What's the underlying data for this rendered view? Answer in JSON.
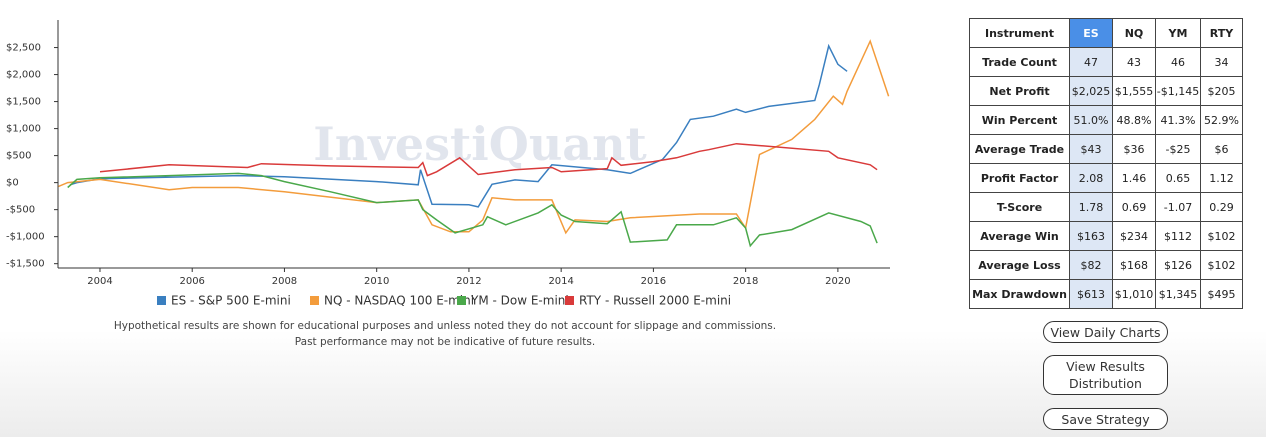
{
  "chart_data": {
    "type": "line",
    "watermark": "InvestiQuant",
    "xlim": [
      2003.09,
      2021.13
    ],
    "xticks": [
      2004,
      2006,
      2008,
      2010,
      2012,
      2014,
      2016,
      2018,
      2020
    ],
    "ylim": [
      -1580,
      3010
    ],
    "yticks": [
      {
        "value": -1500,
        "label": "-$1,500"
      },
      {
        "value": -1000,
        "label": "-$1,000"
      },
      {
        "value": -500,
        "label": "-$500"
      },
      {
        "value": 0,
        "label": "$0"
      },
      {
        "value": 500,
        "label": "$500"
      },
      {
        "value": 1000,
        "label": "$1,000"
      },
      {
        "value": 1500,
        "label": "$1,500"
      },
      {
        "value": 2000,
        "label": "$2,000"
      },
      {
        "value": 2500,
        "label": "$2,500"
      }
    ],
    "series": [
      {
        "name": "ES - S&P 500 E-mini",
        "color": "#3a7fc0",
        "x": [
          2003.35,
          2003.5,
          2004,
          2007,
          2008,
          2010,
          2010.9,
          2010.95,
          2011.2,
          2012,
          2012.2,
          2012.5,
          2013,
          2013.5,
          2013.8,
          2015,
          2015.5,
          2016.2,
          2016.5,
          2016.8,
          2017.3,
          2017.8,
          2018,
          2018.5,
          2019.5,
          2019.6,
          2019.8,
          2020,
          2020.2
        ],
        "values": [
          -40,
          0,
          70,
          130,
          110,
          20,
          -40,
          240,
          -400,
          -410,
          -450,
          -30,
          50,
          20,
          330,
          240,
          170,
          430,
          740,
          1170,
          1230,
          1360,
          1300,
          1410,
          1520,
          1820,
          2530,
          2190,
          2060
        ]
      },
      {
        "name": "NQ - NASDAQ 100 E-mini",
        "color": "#f39c3c",
        "x": [
          2003.1,
          2003.3,
          2004,
          2005.5,
          2006,
          2007,
          2008,
          2010,
          2010.9,
          2011.2,
          2011.6,
          2012,
          2012.3,
          2012.5,
          2013,
          2013.8,
          2014.1,
          2014.3,
          2015,
          2015.5,
          2017,
          2017.8,
          2018,
          2018.3,
          2019,
          2019.5,
          2019.9,
          2020.1,
          2020.2,
          2020.7,
          2021.1
        ],
        "values": [
          -70,
          0,
          60,
          -130,
          -90,
          -90,
          -170,
          -370,
          -320,
          -780,
          -910,
          -910,
          -690,
          -280,
          -320,
          -320,
          -930,
          -690,
          -720,
          -650,
          -580,
          -580,
          -840,
          520,
          800,
          1170,
          1600,
          1450,
          1690,
          2620,
          1600
        ]
      },
      {
        "name": "YM - Dow E-mini",
        "color": "#4aa84a",
        "x": [
          2003.3,
          2003.5,
          2004,
          2007,
          2007.5,
          2008,
          2009,
          2010,
          2010.9,
          2011,
          2011.3,
          2011.7,
          2012.3,
          2012.4,
          2012.8,
          2013.5,
          2013.8,
          2014,
          2014.3,
          2015,
          2015.3,
          2015.5,
          2016.3,
          2016.5,
          2017.3,
          2017.8,
          2018,
          2018.1,
          2018.3,
          2019,
          2019.8,
          2020.5,
          2020.7,
          2020.85
        ],
        "values": [
          -90,
          60,
          90,
          170,
          130,
          20,
          -170,
          -370,
          -320,
          -500,
          -690,
          -930,
          -780,
          -630,
          -780,
          -560,
          -410,
          -600,
          -720,
          -760,
          -540,
          -1100,
          -1060,
          -780,
          -780,
          -650,
          -840,
          -1170,
          -970,
          -870,
          -560,
          -720,
          -800,
          -1120
        ]
      },
      {
        "name": "RTY - Russell 2000 E-mini",
        "color": "#d93a3a",
        "x": [
          2004,
          2005.5,
          2007.2,
          2007.5,
          2009,
          2010.9,
          2011,
          2011.1,
          2011.3,
          2011.8,
          2012.2,
          2013,
          2013.8,
          2014,
          2015,
          2015.1,
          2015.3,
          2016,
          2016.5,
          2017,
          2017.2,
          2017.8,
          2019.8,
          2020,
          2020.7,
          2020.85
        ],
        "values": [
          200,
          330,
          280,
          350,
          310,
          280,
          370,
          130,
          200,
          460,
          150,
          240,
          280,
          200,
          260,
          460,
          320,
          390,
          460,
          580,
          610,
          720,
          580,
          460,
          330,
          240
        ]
      }
    ],
    "disclaimer": [
      "Hypothetical results are shown for educational purposes and unless noted they do not account for slippage and commissions.",
      "Past performance may not be indicative of future results."
    ]
  },
  "table": {
    "header": [
      "Instrument",
      "ES",
      "NQ",
      "YM",
      "RTY"
    ],
    "rows": [
      [
        "Trade Count",
        "47",
        "43",
        "46",
        "34"
      ],
      [
        "Net Profit",
        "$2,025",
        "$1,555",
        "-$1,145",
        "$205"
      ],
      [
        "Win Percent",
        "51.0%",
        "48.8%",
        "41.3%",
        "52.9%"
      ],
      [
        "Average Trade",
        "$43",
        "$36",
        "-$25",
        "$6"
      ],
      [
        "Profit Factor",
        "2.08",
        "1.46",
        "0.65",
        "1.12"
      ],
      [
        "T-Score",
        "1.78",
        "0.69",
        "-1.07",
        "0.29"
      ],
      [
        "Average Win",
        "$163",
        "$234",
        "$112",
        "$102"
      ],
      [
        "Average Loss",
        "$82",
        "$168",
        "$126",
        "$102"
      ],
      [
        "Max Drawdown",
        "$613",
        "$1,010",
        "$1,345",
        "$495"
      ]
    ]
  },
  "buttons": [
    "View Daily Charts",
    "View Results Distribution",
    "Save Strategy"
  ]
}
